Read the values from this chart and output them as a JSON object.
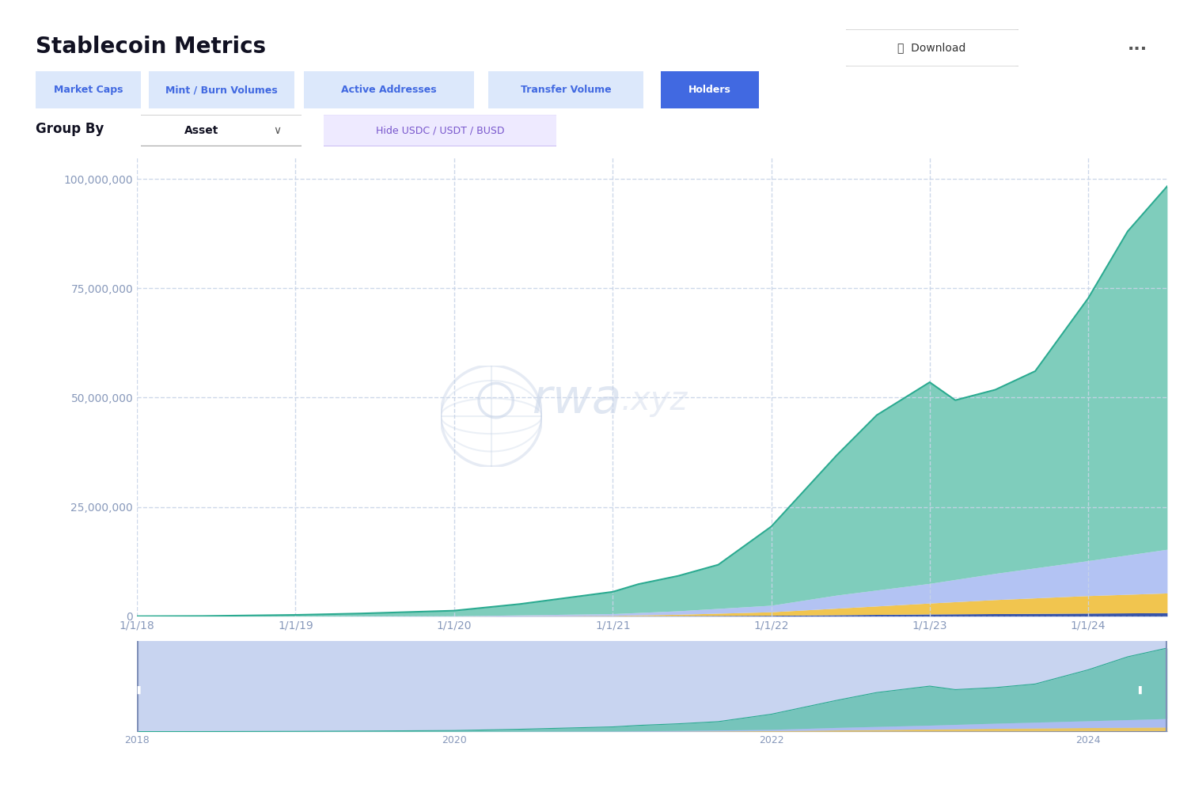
{
  "title": "Stablecoin Metrics",
  "background_color": "#f0f4ff",
  "card_color": "#ffffff",
  "card_edge_color": "#dde4f0",
  "nav_buttons": [
    "Market Caps",
    "Mint / Burn Volumes",
    "Active Addresses",
    "Transfer Volume",
    "Holders"
  ],
  "active_button": "Holders",
  "active_button_color": "#4169E1",
  "inactive_button_color": "#dce8fb",
  "inactive_button_text_color": "#4169E1",
  "group_by_label": "Group By",
  "group_by_value": "Asset",
  "filter_label": "Hide USDC / USDT / BUSD",
  "yticks": [
    0,
    25000000,
    50000000,
    75000000,
    100000000
  ],
  "ylim": [
    0,
    105000000
  ],
  "xtick_labels": [
    "1/1/18",
    "1/1/19",
    "1/1/20",
    "1/1/21",
    "1/1/22",
    "1/1/23",
    "1/1/24"
  ],
  "grid_color": "#c8d4e8",
  "tick_label_color": "#8899bb",
  "color_teal": "#5bbfaa",
  "color_blue": "#a0b4f0",
  "color_yellow": "#f0c040",
  "color_dark": "#2040a0",
  "color_line": "#2aaa90",
  "mini_bg": "#c8d4f0",
  "watermark_color": "#c8d4e8"
}
